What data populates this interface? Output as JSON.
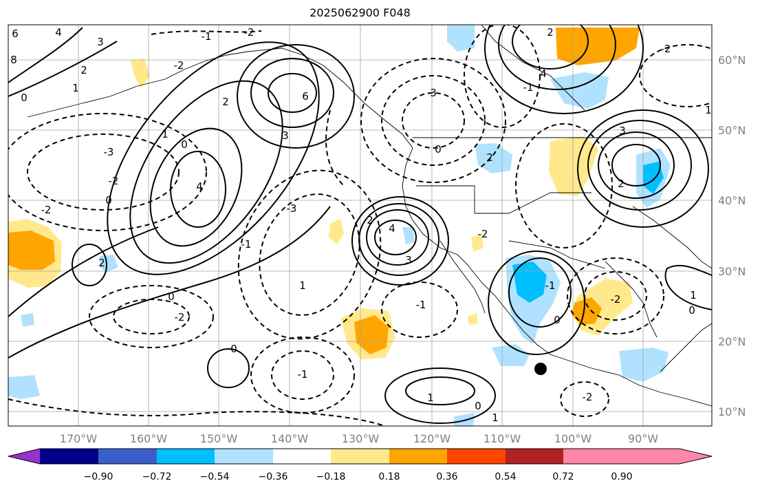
{
  "title": "2025062900 F048",
  "axes": {
    "lon_labels": [
      "170°W",
      "160°W",
      "150°W",
      "140°W",
      "130°W",
      "120°W",
      "110°W",
      "100°W",
      "90°W"
    ],
    "lat_labels": [
      "60°N",
      "50°N",
      "40°N",
      "30°N",
      "20°N",
      "10°N"
    ]
  },
  "colorbar": {
    "ticks": [
      "−0.90",
      "−0.72",
      "−0.54",
      "−0.36",
      "−0.18",
      "0.18",
      "0.36",
      "0.54",
      "0.72",
      "0.90"
    ],
    "colors": [
      "#9932cc",
      "#00008b",
      "#3a5fcd",
      "#00bfff",
      "#b0e2ff",
      "#ffffff",
      "#ffe98c",
      "#ffa500",
      "#ff4500",
      "#b22222",
      "#ff88aa"
    ]
  },
  "contour_labels": [
    "6",
    "4",
    "3",
    "2",
    "1",
    "0",
    "-1",
    "-2",
    "-3",
    "8",
    "6",
    "4",
    "3",
    "2",
    "1",
    "0",
    "-1",
    "-2",
    "0",
    "4",
    "3",
    "2",
    "-2",
    "2",
    "1",
    "0",
    "-1",
    "-2",
    "3",
    "2",
    "1",
    "0",
    "-1",
    "-2",
    "-3",
    "-2",
    "-1",
    "0",
    "1",
    "2",
    "3",
    "4",
    "2",
    "-2",
    "1",
    "0",
    "1",
    "-2",
    "0",
    "-1",
    "0",
    "-2"
  ],
  "marker": "storm-center"
}
